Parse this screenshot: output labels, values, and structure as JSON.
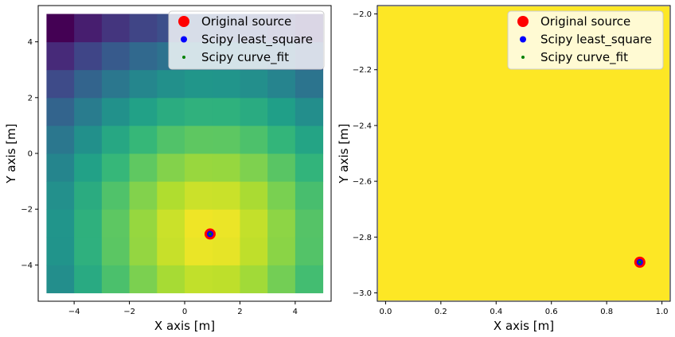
{
  "chart_data": [
    {
      "type": "heatmap",
      "xlabel": "X axis [m]",
      "ylabel": "Y axis [m]",
      "xlim": [
        -5.3,
        5.3
      ],
      "ylim": [
        -5.3,
        5.3
      ],
      "xticks": [
        "−4",
        "−2",
        "0",
        "2",
        "4"
      ],
      "xtick_values": [
        -4,
        -2,
        0,
        2,
        4
      ],
      "yticks": [
        "−4",
        "−2",
        "0",
        "2",
        "4"
      ],
      "ytick_values": [
        -4,
        -2,
        0,
        2,
        4
      ],
      "grid_x_edges": [
        -5,
        -4,
        -3,
        -2,
        -1,
        0,
        1,
        2,
        3,
        4,
        5
      ],
      "grid_y_edges": [
        -5,
        -4,
        -3,
        -2,
        -1,
        0,
        1,
        2,
        3,
        4,
        5
      ],
      "colormap": "viridis",
      "heat_center": [
        0.92,
        -2.89
      ],
      "points": [
        {
          "series": "Original source",
          "x": 0.92,
          "y": -2.89
        },
        {
          "series": "Scipy least_square",
          "x": 0.92,
          "y": -2.89
        },
        {
          "series": "Scipy curve_fit",
          "x": 0.92,
          "y": -2.89
        }
      ],
      "legend_position": "top-right",
      "legend": [
        {
          "name": "Original source",
          "color": "#ff0000",
          "marker": "large-circle"
        },
        {
          "name": "Scipy least_square",
          "color": "#0000ff",
          "marker": "circle"
        },
        {
          "name": "Scipy curve_fit",
          "color": "#008000",
          "marker": "small-circle"
        }
      ]
    },
    {
      "type": "scatter",
      "xlabel": "X axis [m]",
      "ylabel": "Y axis [m]",
      "xlim": [
        -0.03,
        1.03
      ],
      "ylim": [
        -3.03,
        -1.97
      ],
      "xticks": [
        "0.0",
        "0.2",
        "0.4",
        "0.6",
        "0.8",
        "1.0"
      ],
      "xtick_values": [
        0.0,
        0.2,
        0.4,
        0.6,
        0.8,
        1.0
      ],
      "yticks": [
        "−3.0",
        "−2.8",
        "−2.6",
        "−2.4",
        "−2.2",
        "−2.0"
      ],
      "ytick_values": [
        -3.0,
        -2.8,
        -2.6,
        -2.4,
        -2.2,
        -2.0
      ],
      "background_color": "#fde725",
      "points": [
        {
          "series": "Original source",
          "x": 0.92,
          "y": -2.89
        },
        {
          "series": "Scipy least_square",
          "x": 0.92,
          "y": -2.89
        },
        {
          "series": "Scipy curve_fit",
          "x": 0.92,
          "y": -2.89
        }
      ],
      "legend_position": "top-right",
      "legend": [
        {
          "name": "Original source",
          "color": "#ff0000",
          "marker": "large-circle"
        },
        {
          "name": "Scipy least_square",
          "color": "#0000ff",
          "marker": "circle"
        },
        {
          "name": "Scipy curve_fit",
          "color": "#008000",
          "marker": "small-circle"
        }
      ]
    }
  ]
}
